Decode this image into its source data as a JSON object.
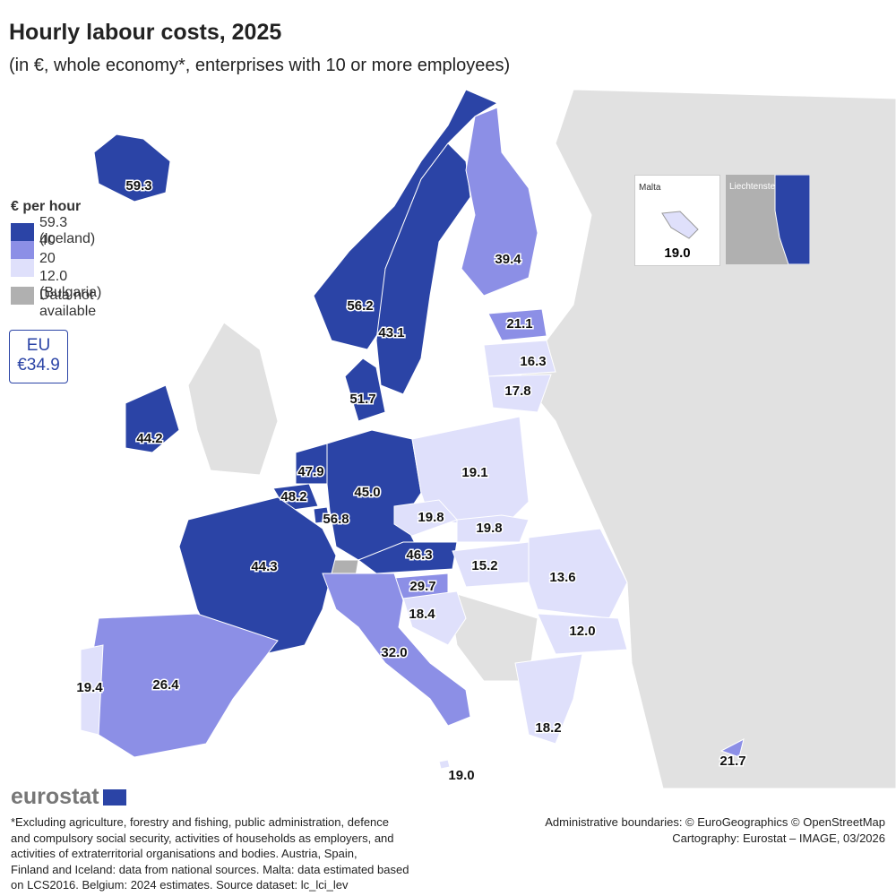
{
  "header": {
    "title": "Hourly labour costs, 2025",
    "subtitle": "(in €, whole economy*, enterprises with 10 or more employees)"
  },
  "legend": {
    "title": "€ per hour",
    "max_label": "59.3 (Iceland)",
    "breaks": [
      40,
      20
    ],
    "min_label": "12.0 (Bulgaria)",
    "na_label": "Data not available",
    "colors": [
      "#2b44a6",
      "#8c8fe6",
      "#dfe0fb"
    ],
    "na_color": "#b0b0b0"
  },
  "eu_box": {
    "label": "EU",
    "value": "€34.9"
  },
  "regions": [
    {
      "value": 59.3
    },
    {
      "value": 56.2
    },
    {
      "value": 43.1
    },
    {
      "value": 39.4
    },
    {
      "value": 21.1
    },
    {
      "value": 16.3
    },
    {
      "value": 17.8
    },
    {
      "value": 51.7
    },
    {
      "value": 44.2
    },
    {
      "value": 47.9
    },
    {
      "value": 48.2
    },
    {
      "value": 56.8
    },
    {
      "value": 45,
      "label": "45.0"
    },
    {
      "value": 19.1
    },
    {
      "value": 19.8
    },
    {
      "value": 19.8
    },
    {
      "value": 46.3
    },
    {
      "value": 15.2
    },
    {
      "value": 13.6
    },
    {
      "value": 44.3
    },
    {
      "value": 29.7
    },
    {
      "value": 18.4
    },
    {
      "value": 12,
      "label": "12.0"
    },
    {
      "value": 32,
      "label": "32.0"
    },
    {
      "value": 26.4
    },
    {
      "value": 19.4
    },
    {
      "value": 18.2
    },
    {
      "value": 19,
      "label": "19.0"
    },
    {
      "value": 21.7
    }
  ],
  "insets": {
    "malta": {
      "title": "Malta",
      "value": 19,
      "label": "19.0"
    },
    "liechtenstein": {
      "title": "Liechtenstein"
    }
  },
  "logo": "eurostat",
  "footnote": [
    "*Excluding agriculture, forestry and fishing, public administration, defence",
    "and compulsory social security, activities of households as employers, and",
    "activities of extraterritorial organisations and bodies. Austria, Spain,",
    "Finland and Iceland: data from national sources. Malta: data estimated based",
    "on LCS2016. Belgium: 2024 estimates. Source dataset: lc_lci_lev"
  ],
  "credits": [
    "Administrative boundaries: © EuroGeographics © OpenStreetMap",
    "Cartography: Eurostat – IMAGE, 03/2026"
  ]
}
